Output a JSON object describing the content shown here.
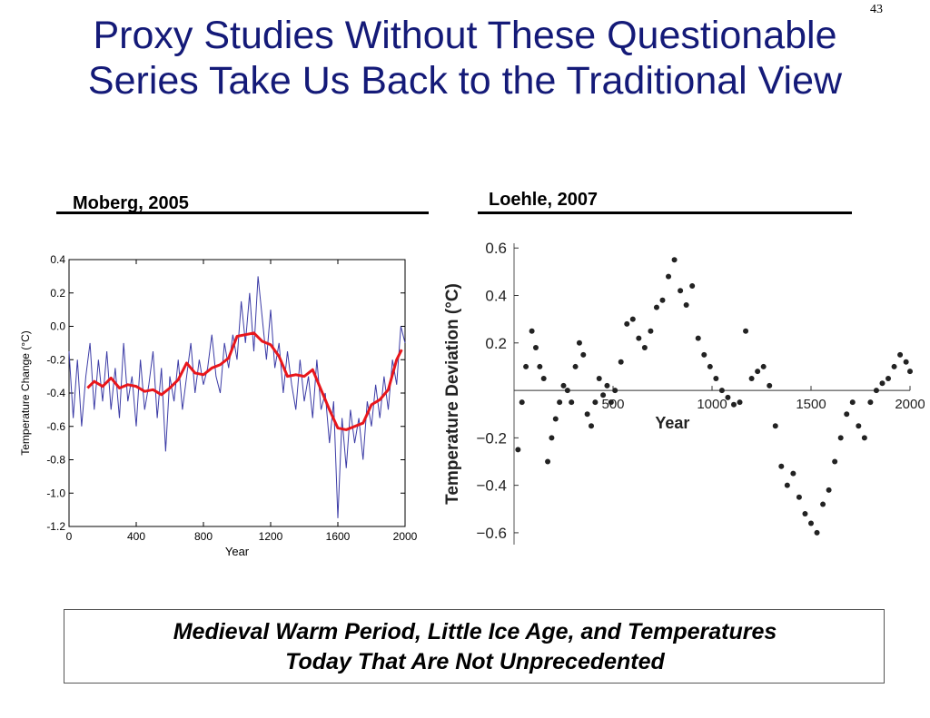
{
  "slide": {
    "page_number": "43",
    "title_line1": "Proxy Studies Without These Questionable",
    "title_line2": "Series Take Us Back to the Traditional View",
    "note_line1": "Medieval Warm Period, Little Ice Age, and Temperatures",
    "note_line2": "Today That Are Not Unprecedented"
  },
  "colors": {
    "title": "#141a78",
    "moberg_raw": "#3c3ca6",
    "moberg_smooth": "#e8161b",
    "loehle_points": "#222222"
  },
  "chart_data": [
    {
      "type": "line",
      "caption": "Moberg, 2005",
      "xlabel": "Year",
      "ylabel": "Temperature Change (°C)",
      "xlim": [
        0,
        2000
      ],
      "ylim": [
        -1.2,
        0.4
      ],
      "x_ticks": [
        0,
        400,
        800,
        1200,
        1600,
        2000
      ],
      "y_ticks": [
        0.4,
        0.2,
        0.0,
        -0.2,
        -0.4,
        -0.6,
        -0.8,
        -1.0,
        -1.2
      ],
      "x_tick_labels": [
        "0",
        "400",
        "800",
        "1200",
        "1600",
        "2000"
      ],
      "y_tick_labels": [
        "0.4",
        "0.2",
        "0.0",
        "-0.2",
        "-0.4",
        "-0.6",
        "-0.8",
        "-1.0",
        "-1.2"
      ],
      "series": [
        {
          "role": "annual",
          "x": [
            0,
            25,
            50,
            75,
            100,
            125,
            150,
            175,
            200,
            225,
            250,
            275,
            300,
            325,
            350,
            375,
            400,
            425,
            450,
            475,
            500,
            525,
            550,
            575,
            600,
            625,
            650,
            675,
            700,
            725,
            750,
            775,
            800,
            825,
            850,
            875,
            900,
            925,
            950,
            975,
            1000,
            1025,
            1050,
            1075,
            1100,
            1125,
            1150,
            1175,
            1200,
            1225,
            1250,
            1275,
            1300,
            1325,
            1350,
            1375,
            1400,
            1425,
            1450,
            1475,
            1500,
            1525,
            1550,
            1575,
            1600,
            1625,
            1650,
            1675,
            1700,
            1725,
            1750,
            1775,
            1800,
            1825,
            1850,
            1875,
            1900,
            1925,
            1950,
            1975,
            2000
          ],
          "y": [
            -0.15,
            -0.55,
            -0.2,
            -0.6,
            -0.3,
            -0.1,
            -0.5,
            -0.2,
            -0.45,
            -0.15,
            -0.5,
            -0.25,
            -0.55,
            -0.1,
            -0.45,
            -0.3,
            -0.6,
            -0.2,
            -0.5,
            -0.35,
            -0.15,
            -0.55,
            -0.25,
            -0.75,
            -0.3,
            -0.45,
            -0.2,
            -0.5,
            -0.3,
            -0.1,
            -0.4,
            -0.2,
            -0.35,
            -0.25,
            -0.05,
            -0.3,
            -0.4,
            -0.1,
            -0.25,
            -0.05,
            -0.2,
            0.15,
            -0.1,
            0.2,
            -0.15,
            0.3,
            0.05,
            -0.2,
            0.1,
            -0.25,
            -0.1,
            -0.4,
            -0.15,
            -0.35,
            -0.5,
            -0.2,
            -0.45,
            -0.3,
            -0.55,
            -0.2,
            -0.5,
            -0.4,
            -0.7,
            -0.45,
            -1.15,
            -0.55,
            -0.85,
            -0.5,
            -0.7,
            -0.55,
            -0.8,
            -0.45,
            -0.6,
            -0.35,
            -0.55,
            -0.3,
            -0.5,
            -0.2,
            -0.35,
            0.0,
            -0.1
          ]
        },
        {
          "role": "smoothed",
          "x": [
            110,
            150,
            200,
            250,
            300,
            350,
            400,
            450,
            500,
            550,
            600,
            650,
            700,
            750,
            800,
            850,
            900,
            950,
            1000,
            1050,
            1100,
            1150,
            1200,
            1250,
            1300,
            1350,
            1400,
            1450,
            1500,
            1550,
            1600,
            1650,
            1700,
            1750,
            1800,
            1850,
            1900,
            1950,
            1980
          ],
          "y": [
            -0.37,
            -0.33,
            -0.36,
            -0.31,
            -0.37,
            -0.35,
            -0.36,
            -0.39,
            -0.38,
            -0.41,
            -0.37,
            -0.32,
            -0.22,
            -0.28,
            -0.29,
            -0.25,
            -0.23,
            -0.19,
            -0.06,
            -0.05,
            -0.04,
            -0.09,
            -0.11,
            -0.18,
            -0.3,
            -0.29,
            -0.3,
            -0.26,
            -0.38,
            -0.5,
            -0.61,
            -0.62,
            -0.6,
            -0.58,
            -0.47,
            -0.44,
            -0.38,
            -0.2,
            -0.14
          ]
        }
      ]
    },
    {
      "type": "scatter",
      "caption": "Loehle, 2007",
      "xlabel": "Year",
      "ylabel": "Temperature Deviation (°C)",
      "xlim": [
        0,
        2000
      ],
      "ylim": [
        -0.65,
        0.62
      ],
      "x_ticks": [
        500,
        1000,
        1500,
        2000
      ],
      "y_ticks": [
        0.6,
        0.4,
        0.2,
        -0.2,
        -0.4,
        -0.6
      ],
      "x_tick_labels": [
        "500",
        "1000",
        "1500",
        "2000"
      ],
      "y_tick_labels": [
        "0.6",
        "0.4",
        "0.2",
        "−0.2",
        "−0.4",
        "−0.6"
      ],
      "x": [
        20,
        40,
        60,
        90,
        110,
        130,
        150,
        170,
        190,
        210,
        230,
        250,
        270,
        290,
        310,
        330,
        350,
        370,
        390,
        410,
        430,
        450,
        470,
        490,
        510,
        540,
        570,
        600,
        630,
        660,
        690,
        720,
        750,
        780,
        810,
        840,
        870,
        900,
        930,
        960,
        990,
        1020,
        1050,
        1080,
        1110,
        1140,
        1170,
        1200,
        1230,
        1260,
        1290,
        1320,
        1350,
        1380,
        1410,
        1440,
        1470,
        1500,
        1530,
        1560,
        1590,
        1620,
        1650,
        1680,
        1710,
        1740,
        1770,
        1800,
        1830,
        1860,
        1890,
        1920,
        1950,
        1980,
        2000
      ],
      "y": [
        -0.25,
        -0.05,
        0.1,
        0.25,
        0.18,
        0.1,
        0.05,
        -0.3,
        -0.2,
        -0.12,
        -0.05,
        0.02,
        0.0,
        -0.05,
        0.1,
        0.2,
        0.15,
        -0.1,
        -0.15,
        -0.05,
        0.05,
        -0.02,
        0.02,
        -0.05,
        0.0,
        0.12,
        0.28,
        0.3,
        0.22,
        0.18,
        0.25,
        0.35,
        0.38,
        0.48,
        0.55,
        0.42,
        0.36,
        0.44,
        0.22,
        0.15,
        0.1,
        0.05,
        0.0,
        -0.03,
        -0.06,
        -0.05,
        0.25,
        0.05,
        0.08,
        0.1,
        0.02,
        -0.15,
        -0.32,
        -0.4,
        -0.35,
        -0.45,
        -0.52,
        -0.56,
        -0.6,
        -0.48,
        -0.42,
        -0.3,
        -0.2,
        -0.1,
        -0.05,
        -0.15,
        -0.2,
        -0.05,
        0.0,
        0.03,
        0.05,
        0.1,
        0.15,
        0.12,
        0.08
      ]
    }
  ]
}
